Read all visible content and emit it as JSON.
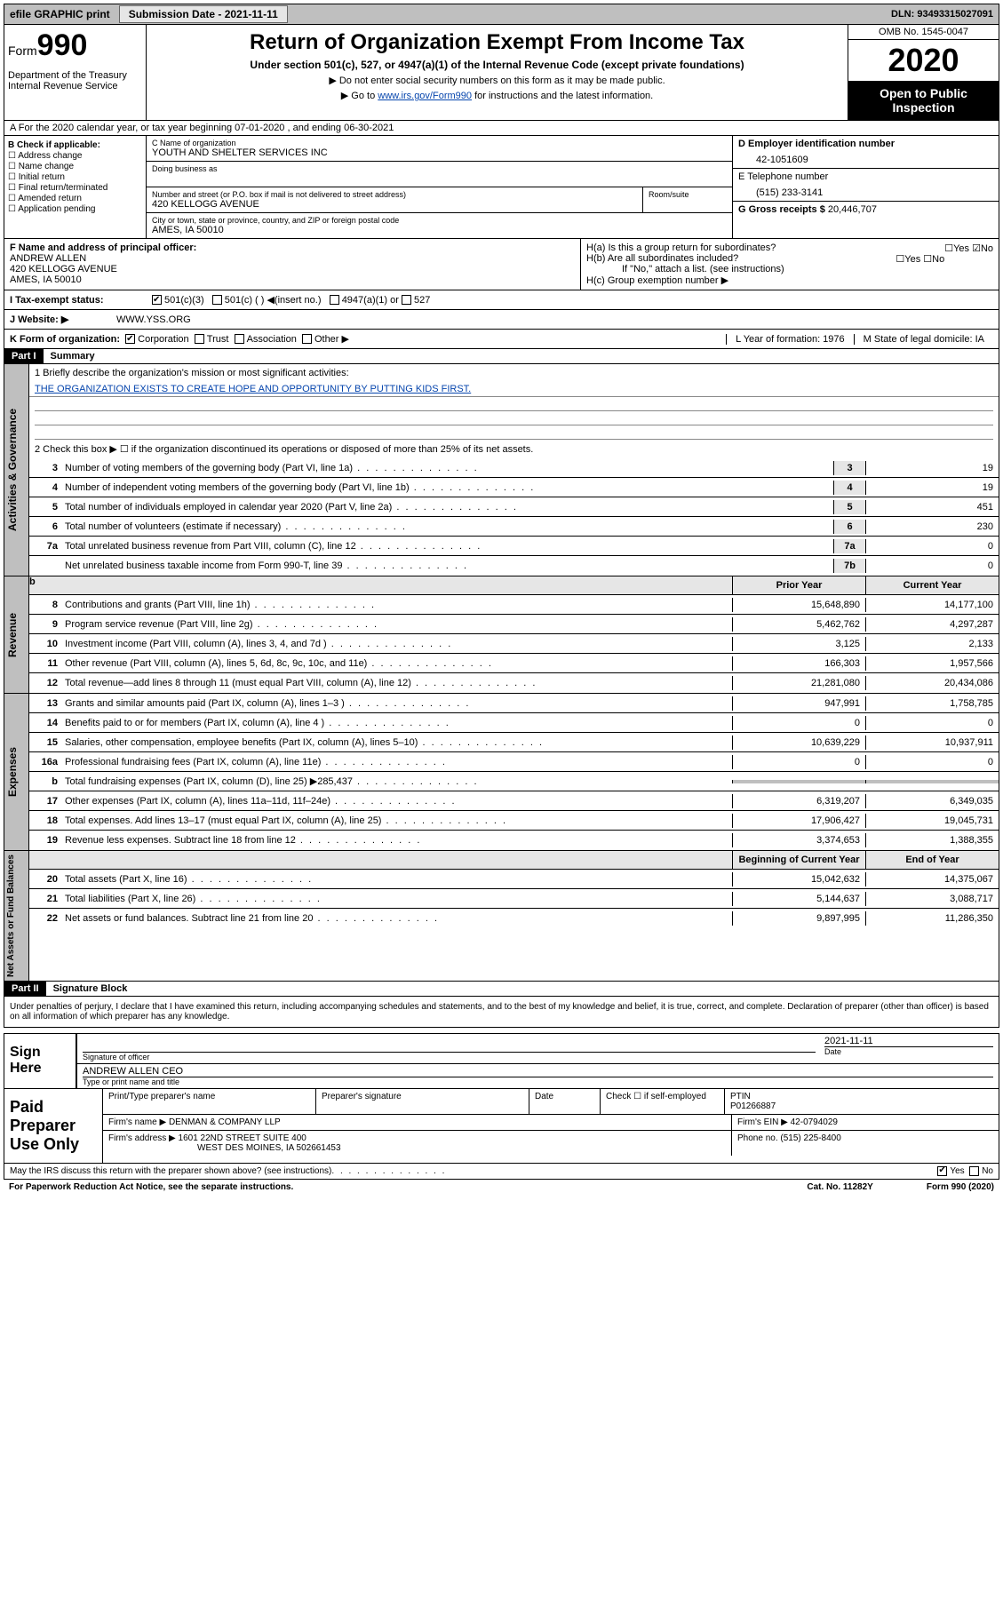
{
  "topbar": {
    "efile": "efile GRAPHIC print",
    "submission": "Submission Date - 2021-11-11",
    "dln": "DLN: 93493315027091"
  },
  "header": {
    "form_label": "Form",
    "form_num": "990",
    "dept": "Department of the Treasury\nInternal Revenue Service",
    "title": "Return of Organization Exempt From Income Tax",
    "sub": "Under section 501(c), 527, or 4947(a)(1) of the Internal Revenue Code (except private foundations)",
    "note1": "▶ Do not enter social security numbers on this form as it may be made public.",
    "note2_pre": "▶ Go to ",
    "note2_link": "www.irs.gov/Form990",
    "note2_post": " for instructions and the latest information.",
    "omb": "OMB No. 1545-0047",
    "year": "2020",
    "inspection": "Open to Public Inspection"
  },
  "period": "A For the 2020 calendar year, or tax year beginning 07-01-2020    , and ending 06-30-2021",
  "boxB": {
    "label": "B Check if applicable:",
    "opts": [
      "Address change",
      "Name change",
      "Initial return",
      "Final return/terminated",
      "Amended return",
      "Application pending"
    ]
  },
  "boxC": {
    "name_label": "C Name of organization",
    "name": "YOUTH AND SHELTER SERVICES INC",
    "dba_label": "Doing business as",
    "addr_label": "Number and street (or P.O. box if mail is not delivered to street address)",
    "room_label": "Room/suite",
    "addr": "420 KELLOGG AVENUE",
    "city_label": "City or town, state or province, country, and ZIP or foreign postal code",
    "city": "AMES, IA  50010"
  },
  "boxD": {
    "label": "D Employer identification number",
    "val": "42-1051609"
  },
  "boxE": {
    "label": "E Telephone number",
    "val": "(515) 233-3141"
  },
  "boxG": {
    "label": "G Gross receipts $",
    "val": "20,446,707"
  },
  "boxF": {
    "label": "F  Name and address of principal officer:",
    "name": "ANDREW ALLEN",
    "addr": "420 KELLOGG AVENUE",
    "city": "AMES, IA  50010"
  },
  "boxH": {
    "a": "H(a)  Is this a group return for subordinates?",
    "b": "H(b)  Are all subordinates included?",
    "b_note": "If \"No,\" attach a list. (see instructions)",
    "c": "H(c)  Group exemption number ▶",
    "yes": "Yes",
    "no": "No"
  },
  "taxexempt": {
    "label": "I    Tax-exempt status:",
    "c3": "501(c)(3)",
    "c": "501(c) (  ) ◀(insert no.)",
    "a1": "4947(a)(1) or",
    "s527": "527"
  },
  "website": {
    "label": "J   Website: ▶",
    "val": "WWW.YSS.ORG"
  },
  "boxK": {
    "label": "K Form of organization:",
    "opts": [
      "Corporation",
      "Trust",
      "Association",
      "Other ▶"
    ],
    "L": "L Year of formation: 1976",
    "M": "M State of legal domicile: IA"
  },
  "partI": {
    "hdr": "Part I",
    "title": "Summary"
  },
  "gov": {
    "l1": "1   Briefly describe the organization's mission or most significant activities:",
    "mission": "THE ORGANIZATION EXISTS TO CREATE HOPE AND OPPORTUNITY BY PUTTING KIDS FIRST.",
    "l2": "2   Check this box ▶ ☐  if the organization discontinued its operations or disposed of more than 25% of its net assets.",
    "lines": [
      {
        "n": "3",
        "d": "Number of voting members of the governing body (Part VI, line 1a)",
        "b": "3",
        "v": "19"
      },
      {
        "n": "4",
        "d": "Number of independent voting members of the governing body (Part VI, line 1b)",
        "b": "4",
        "v": "19"
      },
      {
        "n": "5",
        "d": "Total number of individuals employed in calendar year 2020 (Part V, line 2a)",
        "b": "5",
        "v": "451"
      },
      {
        "n": "6",
        "d": "Total number of volunteers (estimate if necessary)",
        "b": "6",
        "v": "230"
      },
      {
        "n": "7a",
        "d": "Total unrelated business revenue from Part VIII, column (C), line 12",
        "b": "7a",
        "v": "0"
      },
      {
        "n": "",
        "d": "Net unrelated business taxable income from Form 990-T, line 39",
        "b": "7b",
        "v": "0"
      }
    ]
  },
  "rev": {
    "hdr_b": "b",
    "hdr_prior": "Prior Year",
    "hdr_curr": "Current Year",
    "lines": [
      {
        "n": "8",
        "d": "Contributions and grants (Part VIII, line 1h)",
        "p": "15,648,890",
        "c": "14,177,100"
      },
      {
        "n": "9",
        "d": "Program service revenue (Part VIII, line 2g)",
        "p": "5,462,762",
        "c": "4,297,287"
      },
      {
        "n": "10",
        "d": "Investment income (Part VIII, column (A), lines 3, 4, and 7d )",
        "p": "3,125",
        "c": "2,133"
      },
      {
        "n": "11",
        "d": "Other revenue (Part VIII, column (A), lines 5, 6d, 8c, 9c, 10c, and 11e)",
        "p": "166,303",
        "c": "1,957,566"
      },
      {
        "n": "12",
        "d": "Total revenue—add lines 8 through 11 (must equal Part VIII, column (A), line 12)",
        "p": "21,281,080",
        "c": "20,434,086"
      }
    ]
  },
  "exp": {
    "lines": [
      {
        "n": "13",
        "d": "Grants and similar amounts paid (Part IX, column (A), lines 1–3 )",
        "p": "947,991",
        "c": "1,758,785"
      },
      {
        "n": "14",
        "d": "Benefits paid to or for members (Part IX, column (A), line 4 )",
        "p": "0",
        "c": "0"
      },
      {
        "n": "15",
        "d": "Salaries, other compensation, employee benefits (Part IX, column (A), lines 5–10)",
        "p": "10,639,229",
        "c": "10,937,911"
      },
      {
        "n": "16a",
        "d": "Professional fundraising fees (Part IX, column (A), line 11e)",
        "p": "0",
        "c": "0"
      },
      {
        "n": "b",
        "d": "Total fundraising expenses (Part IX, column (D), line 25) ▶285,437",
        "p": "",
        "c": "",
        "shade": true
      },
      {
        "n": "17",
        "d": "Other expenses (Part IX, column (A), lines 11a–11d, 11f–24e)",
        "p": "6,319,207",
        "c": "6,349,035"
      },
      {
        "n": "18",
        "d": "Total expenses. Add lines 13–17 (must equal Part IX, column (A), line 25)",
        "p": "17,906,427",
        "c": "19,045,731"
      },
      {
        "n": "19",
        "d": "Revenue less expenses. Subtract line 18 from line 12",
        "p": "3,374,653",
        "c": "1,388,355"
      }
    ]
  },
  "net": {
    "hdr_b": "Beginning of Current Year",
    "hdr_e": "End of Year",
    "lines": [
      {
        "n": "20",
        "d": "Total assets (Part X, line 16)",
        "p": "15,042,632",
        "c": "14,375,067"
      },
      {
        "n": "21",
        "d": "Total liabilities (Part X, line 26)",
        "p": "5,144,637",
        "c": "3,088,717"
      },
      {
        "n": "22",
        "d": "Net assets or fund balances. Subtract line 21 from line 20",
        "p": "9,897,995",
        "c": "11,286,350"
      }
    ]
  },
  "partII": {
    "hdr": "Part II",
    "title": "Signature Block"
  },
  "sig": {
    "decl": "Under penalties of perjury, I declare that I have examined this return, including accompanying schedules and statements, and to the best of my knowledge and belief, it is true, correct, and complete. Declaration of preparer (other than officer) is based on all information of which preparer has any knowledge.",
    "here": "Sign Here",
    "sig_label": "Signature of officer",
    "date": "2021-11-11",
    "date_label": "Date",
    "name": "ANDREW ALLEN CEO",
    "name_label": "Type or print name and title"
  },
  "prep": {
    "label": "Paid Preparer Use Only",
    "h1": "Print/Type preparer's name",
    "h2": "Preparer's signature",
    "h3": "Date",
    "h4": "Check ☐ if self-employed",
    "h5": "PTIN",
    "ptin": "P01266887",
    "firm_label": "Firm's name   ▶",
    "firm": "DENMAN & COMPANY LLP",
    "ein_label": "Firm's EIN ▶",
    "ein": "42-0794029",
    "addr_label": "Firm's address ▶",
    "addr1": "1601 22ND STREET SUITE 400",
    "addr2": "WEST DES MOINES, IA  502661453",
    "phone_label": "Phone no.",
    "phone": "(515) 225-8400"
  },
  "footer": {
    "discuss": "May the IRS discuss this return with the preparer shown above? (see instructions)",
    "yes": "Yes",
    "no": "No",
    "pra": "For Paperwork Reduction Act Notice, see the separate instructions.",
    "cat": "Cat. No. 11282Y",
    "form": "Form 990 (2020)"
  },
  "side": {
    "gov": "Activities & Governance",
    "rev": "Revenue",
    "exp": "Expenses",
    "net": "Net Assets or Fund Balances"
  }
}
